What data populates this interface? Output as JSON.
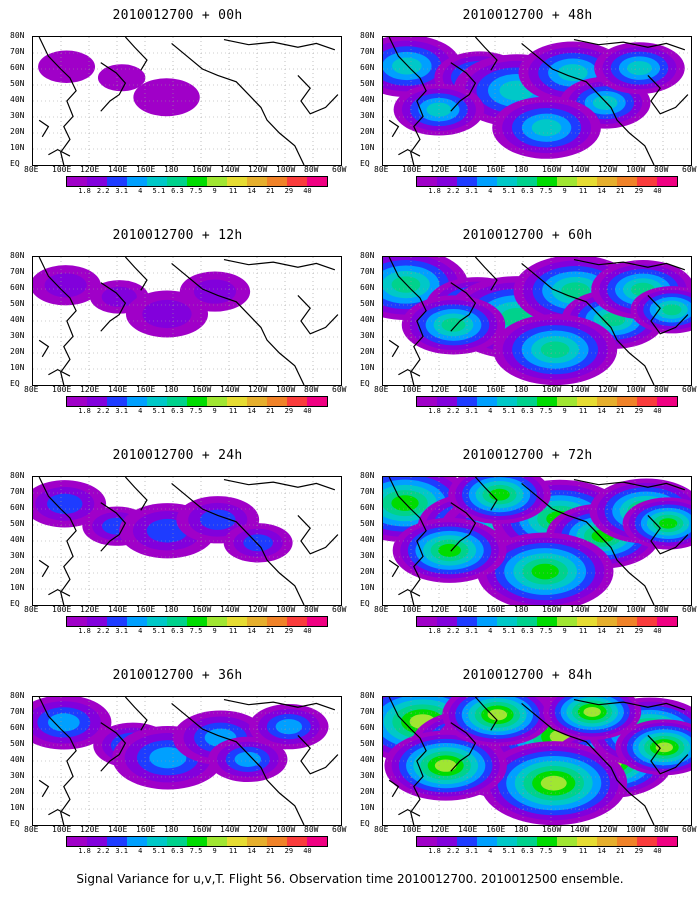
{
  "figure_caption": "Signal Variance for u,v,T. Flight 56. Observation time 2010012700. 2010012500 ensemble.",
  "panels": [
    {
      "id": "p00",
      "title": "2010012700 + 00h",
      "intensity": 0.05
    },
    {
      "id": "p48",
      "title": "2010012700 + 48h",
      "intensity": 0.55
    },
    {
      "id": "p12",
      "title": "2010012700 + 12h",
      "intensity": 0.18
    },
    {
      "id": "p60",
      "title": "2010012700 + 60h",
      "intensity": 0.7
    },
    {
      "id": "p24",
      "title": "2010012700 + 24h",
      "intensity": 0.3
    },
    {
      "id": "p72",
      "title": "2010012700 + 72h",
      "intensity": 0.82
    },
    {
      "id": "p36",
      "title": "2010012700 + 36h",
      "intensity": 0.42
    },
    {
      "id": "p84",
      "title": "2010012700 + 84h",
      "intensity": 0.92
    }
  ],
  "y_axis_labels": [
    "80N",
    "70N",
    "60N",
    "50N",
    "40N",
    "30N",
    "20N",
    "10N",
    "EQ"
  ],
  "x_axis_labels": [
    "80E",
    "100E",
    "120E",
    "140E",
    "160E",
    "180",
    "160W",
    "140W",
    "120W",
    "100W",
    "80W",
    "60W"
  ],
  "colorbar": {
    "labels": [
      "1.8",
      "2.2",
      "3.1",
      "4",
      "5.1",
      "6.3",
      "7.5",
      "9",
      "11",
      "14",
      "21",
      "29",
      "40"
    ],
    "colors": [
      "#a000c8",
      "#8200dc",
      "#1e3cff",
      "#00a0ff",
      "#00c8c8",
      "#00d28c",
      "#00dc00",
      "#a0e632",
      "#e6dc32",
      "#e6af2d",
      "#f08228",
      "#fa3c3c",
      "#f00082"
    ]
  },
  "colors": {
    "land_outline": "#000000",
    "grid": "#9a9a9a",
    "background": "#ffffff"
  }
}
